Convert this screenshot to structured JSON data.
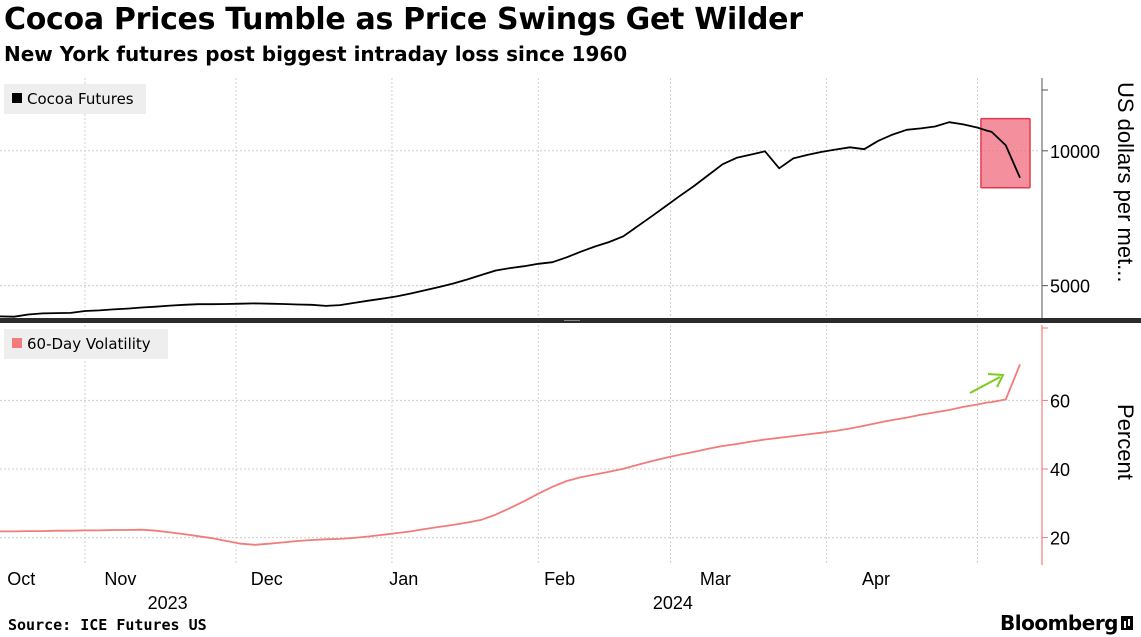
{
  "title": "Cocoa Prices Tumble as Price Swings Get Wilder",
  "subtitle": "New York futures post biggest intraday loss since 1960",
  "source": "Source: ICE Futures US",
  "brand": "Bloomberg",
  "colors": {
    "price_line": "#000000",
    "volatility_line": "#f27b7b",
    "highlight_fill": "#f06a7e",
    "highlight_stroke": "#e23a50",
    "arrow": "#7ccc1e",
    "grid": "#cfcfcf",
    "legend_bg": "#eeeeee"
  },
  "chart_data": [
    {
      "type": "line",
      "panel": "top",
      "legend": "Cocoa Futures",
      "ylabel": "US dollars per met...",
      "ylim": [
        3800,
        12700
      ],
      "yticks": [
        {
          "value": 5000,
          "label": "5000"
        },
        {
          "value": 10000,
          "label": "10000"
        }
      ],
      "annotation": "highlighted box around latest price drop",
      "series": [
        {
          "name": "Cocoa Futures",
          "x": [
            0,
            3,
            6,
            9,
            12,
            15,
            18,
            21,
            24,
            27,
            30,
            33,
            36,
            39,
            42,
            45,
            48,
            51,
            54,
            57,
            60,
            63,
            66,
            69,
            72,
            75,
            78,
            81,
            84,
            87,
            90,
            93,
            96,
            99,
            102,
            105,
            108,
            111,
            114,
            117,
            120,
            123,
            126,
            129,
            132,
            135,
            138,
            141,
            144,
            147,
            150,
            153,
            156,
            159,
            162,
            165,
            168,
            171,
            174,
            177,
            180,
            183,
            186,
            189,
            192,
            195,
            198,
            201,
            204,
            207,
            209,
            210,
            213,
            216
          ],
          "values": [
            3860,
            3850,
            3930,
            3970,
            3980,
            3990,
            4060,
            4080,
            4120,
            4150,
            4190,
            4220,
            4260,
            4290,
            4310,
            4310,
            4320,
            4330,
            4340,
            4330,
            4320,
            4300,
            4290,
            4250,
            4280,
            4360,
            4440,
            4520,
            4600,
            4710,
            4830,
            4950,
            5080,
            5230,
            5400,
            5560,
            5650,
            5720,
            5810,
            5870,
            6050,
            6260,
            6450,
            6620,
            6830,
            7200,
            7570,
            7950,
            8330,
            8700,
            9100,
            9500,
            9740,
            9860,
            9980,
            9350,
            9720,
            9850,
            9960,
            10050,
            10130,
            10060,
            10370,
            10600,
            10780,
            10830,
            10900,
            11060,
            10980,
            10860,
            10750,
            10700,
            10200,
            9000
          ]
        }
      ]
    },
    {
      "type": "line",
      "panel": "bottom",
      "legend": "60-Day Volatility",
      "ylabel": "Percent",
      "ylim": [
        12,
        82
      ],
      "yticks": [
        {
          "value": 20,
          "label": "20"
        },
        {
          "value": 40,
          "label": "40"
        },
        {
          "value": 60,
          "label": "60"
        }
      ],
      "annotation": "green arrow pointing up at latest volatility spike",
      "series": [
        {
          "name": "60-Day Volatility",
          "x": [
            0,
            3,
            6,
            9,
            12,
            15,
            18,
            21,
            24,
            27,
            30,
            33,
            36,
            39,
            42,
            45,
            48,
            51,
            54,
            57,
            60,
            63,
            66,
            69,
            72,
            75,
            78,
            81,
            84,
            87,
            90,
            93,
            96,
            99,
            102,
            105,
            108,
            111,
            114,
            117,
            120,
            123,
            126,
            129,
            132,
            135,
            138,
            141,
            144,
            147,
            150,
            153,
            156,
            159,
            162,
            165,
            168,
            171,
            174,
            177,
            180,
            183,
            186,
            189,
            192,
            195,
            198,
            201,
            204,
            207,
            209,
            210,
            213,
            216
          ],
          "values": [
            21.8,
            21.8,
            21.9,
            21.9,
            22.0,
            22.0,
            22.1,
            22.1,
            22.2,
            22.2,
            22.3,
            22.0,
            21.5,
            21.0,
            20.4,
            19.8,
            19.0,
            18.2,
            17.9,
            18.2,
            18.6,
            19.0,
            19.3,
            19.5,
            19.6,
            19.9,
            20.3,
            20.8,
            21.3,
            21.8,
            22.5,
            23.1,
            23.7,
            24.4,
            25.2,
            26.7,
            28.6,
            30.6,
            32.8,
            34.8,
            36.5,
            37.6,
            38.4,
            39.2,
            40.1,
            41.2,
            42.3,
            43.3,
            44.2,
            45.0,
            45.9,
            46.7,
            47.3,
            48.0,
            48.6,
            49.1,
            49.6,
            50.1,
            50.6,
            51.1,
            51.8,
            52.6,
            53.5,
            54.3,
            55.0,
            55.8,
            56.5,
            57.2,
            58.1,
            58.8,
            59.4,
            59.5,
            60.3,
            70.5
          ]
        }
      ]
    }
  ],
  "x_axis": {
    "x_range": [
      0,
      216
    ],
    "months": [
      {
        "x": 4.5,
        "label": "Oct"
      },
      {
        "x": 25.5,
        "label": "Nov"
      },
      {
        "x": 56.5,
        "label": "Dec"
      },
      {
        "x": 85.5,
        "label": "Jan"
      },
      {
        "x": 118.5,
        "label": "Feb"
      },
      {
        "x": 151.5,
        "label": "Mar"
      },
      {
        "x": 185.5,
        "label": "Apr"
      }
    ],
    "gridlines": [
      18,
      50,
      83,
      114,
      142,
      175,
      207
    ],
    "years": [
      {
        "x": 35.5,
        "label": "2023"
      },
      {
        "x": 142.5,
        "label": "2024"
      }
    ]
  }
}
